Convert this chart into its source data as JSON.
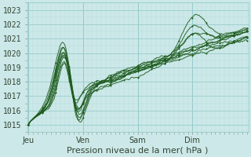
{
  "xlabel": "Pression niveau de la mer( hPa )",
  "bg_color": "#cce8e8",
  "grid_major_color": "#99cccc",
  "grid_minor_color": "#b8dddd",
  "line_color": "#1e5c1e",
  "ylim": [
    1014.5,
    1023.5
  ],
  "day_labels": [
    "Jeu",
    "Ven",
    "Sam",
    "Dim"
  ],
  "day_positions": [
    0,
    96,
    192,
    288
  ],
  "total_steps": 384,
  "label_fontsize": 8,
  "tick_fontsize": 7
}
